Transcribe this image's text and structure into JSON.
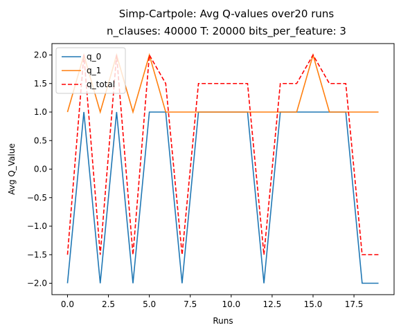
{
  "chart_data": {
    "type": "line",
    "title": "Simp-Cartpole: Avg Q-values over20 runs",
    "subtitle": "n_clauses: 40000 T: 20000 bits_per_feature: 3",
    "xlabel": "Runs",
    "ylabel": "Avg Q_Value",
    "xlim": [
      -0.95,
      19.95
    ],
    "ylim": [
      -2.2,
      2.2
    ],
    "x_ticks": [
      0.0,
      2.5,
      5.0,
      7.5,
      10.0,
      12.5,
      15.0,
      17.5
    ],
    "x_tick_labels": [
      "0.0",
      "2.5",
      "5.0",
      "7.5",
      "10.0",
      "12.5",
      "15.0",
      "17.5"
    ],
    "y_ticks": [
      -2.0,
      -1.5,
      -1.0,
      -0.5,
      0.0,
      0.5,
      1.0,
      1.5,
      2.0
    ],
    "y_tick_labels": [
      "−2.0",
      "−1.5",
      "−1.0",
      "−0.5",
      "0.0",
      "0.5",
      "1.0",
      "1.5",
      "2.0"
    ],
    "legend_position": "top-left",
    "grid": false,
    "x": [
      0,
      1,
      2,
      3,
      4,
      5,
      6,
      7,
      8,
      9,
      10,
      11,
      12,
      13,
      14,
      15,
      16,
      17,
      18,
      19
    ],
    "series": [
      {
        "name": "q_0",
        "color": "#1f77b4",
        "dash": "solid",
        "values": [
          -2,
          1,
          -2,
          1,
          -2,
          1,
          1,
          -2,
          1,
          1,
          1,
          1,
          -2,
          1,
          1,
          1,
          1,
          1,
          -2,
          -2
        ]
      },
      {
        "name": "q_1",
        "color": "#ff7f0e",
        "dash": "solid",
        "values": [
          1,
          2,
          1,
          2,
          1,
          2,
          1,
          1,
          1,
          1,
          1,
          1,
          1,
          1,
          1,
          2,
          1,
          1,
          1,
          1
        ]
      },
      {
        "name": "q_total",
        "color": "#ff0000",
        "dash": "dashed",
        "values": [
          -1.5,
          2,
          -1.5,
          2,
          -1.5,
          2,
          1.5,
          -1.5,
          1.5,
          1.5,
          1.5,
          1.5,
          -1.5,
          1.5,
          1.5,
          2,
          1.5,
          1.5,
          -1.5,
          -1.5
        ]
      }
    ]
  }
}
